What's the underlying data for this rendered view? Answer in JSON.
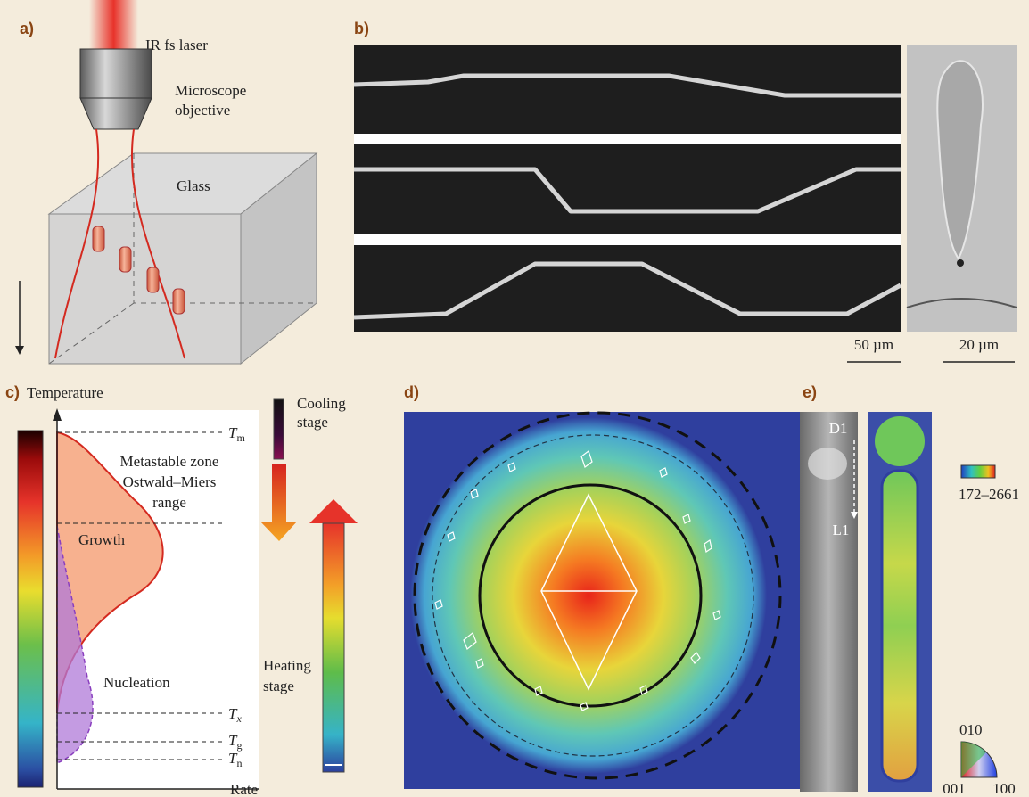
{
  "panels": {
    "a": {
      "label": "a)",
      "laser": "IR fs laser",
      "objective": [
        "Microscope",
        "objective"
      ],
      "material": "Glass"
    },
    "b": {
      "label": "b)",
      "scale_bars": [
        "50 µm",
        "20 µm"
      ]
    },
    "c": {
      "label": "c)",
      "y_axis": "Temperature",
      "x_axis": "Rate",
      "zone": [
        "Metastable zone",
        "Ostwald–Miers",
        "range"
      ],
      "growth": "Growth",
      "nucleation": "Nucleation",
      "levels": [
        {
          "symbol": "T",
          "subscript": "m"
        },
        {
          "symbol": "T",
          "subscript": "x"
        },
        {
          "symbol": "T",
          "subscript": "g"
        },
        {
          "symbol": "T",
          "subscript": "n"
        }
      ],
      "cooling": [
        "Cooling",
        "stage"
      ],
      "heating": [
        "Heating",
        "stage"
      ]
    },
    "d": {
      "label": "d)"
    },
    "e": {
      "label": "e)",
      "directions": [
        "D1",
        "L1"
      ],
      "scale_range": "172–2661",
      "orientations": [
        "010",
        "001",
        "100"
      ]
    }
  }
}
